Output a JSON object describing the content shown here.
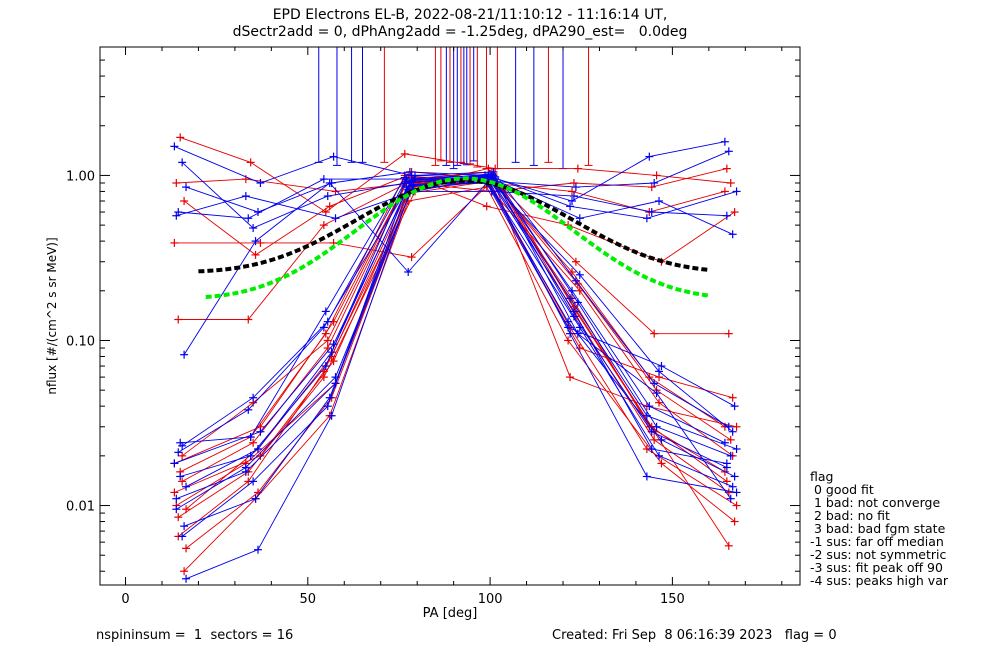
{
  "title_line1": "EPD Electrons EL-B, 2022-08-21/11:10:12 - 11:16:14 UT,",
  "title_line2": "dSectr2add = 0, dPhAng2add = -1.25deg, dPA290_est=   0.0deg",
  "footer_left": "nspininsum =  1  sectors = 16",
  "footer_right": "Created: Fri Sep  8 06:16:39 2023   flag = 0",
  "flag_legend": {
    "heading": "flag",
    "items": [
      " 0 good fit",
      " 1 bad: not converge",
      " 2 bad: no fit",
      " 3 bad: bad fgm state",
      "-1 sus: far off median",
      "-2 sus: not symmetric",
      "-3 sus: fit peak off 90",
      "-4 sus: peaks high var"
    ]
  },
  "colors": {
    "red": "#e60000",
    "blue": "#0000ee",
    "black": "#000000",
    "green": "#00ee00"
  },
  "chart_data": {
    "type": "line",
    "title": "EPD Electrons EL-B, 2022-08-21/11:10:12 - 11:16:14 UT,",
    "xlabel": "PA [deg]",
    "ylabel": "nflux [#/(cm^2 s sr MeV)]",
    "xlim": [
      -7,
      185
    ],
    "ylim": [
      0.0033,
      6.0
    ],
    "yscale": "log",
    "xticks": [
      0,
      50,
      100,
      150
    ],
    "xtick_labels": [
      "0",
      "50",
      "100",
      "150"
    ],
    "yticks": [
      0.01,
      0.1,
      1.0
    ],
    "ytick_labels": [
      "0.01",
      "0.10",
      "1.00"
    ],
    "pa": [
      15,
      35,
      56,
      78,
      100,
      123,
      145,
      166
    ],
    "pa_jitter": [
      1.6,
      2.0,
      1.6,
      1.4,
      1.4,
      1.6,
      2.0,
      1.6
    ],
    "series": [
      {
        "color": "red",
        "values": [
          0.012,
          0.02,
          0.075,
          0.85,
          0.95,
          0.18,
          0.03,
          0.016
        ]
      },
      {
        "color": "red",
        "values": [
          0.0085,
          0.016,
          0.06,
          0.8,
          1.0,
          0.14,
          0.025,
          0.012
        ]
      },
      {
        "color": "red",
        "values": [
          0.014,
          0.024,
          0.09,
          0.9,
          0.9,
          0.2,
          0.042,
          0.02
        ]
      },
      {
        "color": "red",
        "values": [
          0.0055,
          0.012,
          0.045,
          0.78,
          0.92,
          0.12,
          0.022,
          0.01
        ]
      },
      {
        "color": "red",
        "values": [
          0.01,
          0.018,
          0.055,
          0.95,
          1.05,
          0.16,
          0.03,
          0.014
        ]
      },
      {
        "color": "red",
        "values": [
          0.016,
          0.026,
          0.11,
          1.0,
          0.88,
          0.22,
          0.05,
          0.025
        ]
      },
      {
        "color": "red",
        "values": [
          0.004,
          0.011,
          0.035,
          0.7,
          0.85,
          0.1,
          0.018,
          0.008
        ]
      },
      {
        "color": "red",
        "values": [
          0.018,
          0.03,
          0.13,
          1.05,
          0.95,
          0.26,
          0.06,
          0.03
        ]
      },
      {
        "color": "red",
        "values": [
          0.0065,
          0.014,
          0.065,
          0.88,
          1.02,
          0.15,
          0.028,
          0.0057
        ]
      },
      {
        "color": "red",
        "values": [
          0.02,
          0.042,
          0.1,
          0.92,
          0.98,
          0.09,
          0.06,
          0.045
        ]
      },
      {
        "color": "red",
        "values": [
          0.0095,
          0.022,
          0.08,
          0.86,
          1.1,
          0.06,
          0.04,
          0.03
        ]
      },
      {
        "color": "red",
        "values": [
          0.9,
          0.95,
          0.8,
          0.9,
          0.8,
          0.9,
          0.85,
          1.1
        ]
      },
      {
        "color": "red",
        "values": [
          1.7,
          1.2,
          0.6,
          1.35,
          1.1,
          1.1,
          1.0,
          0.9
        ]
      },
      {
        "color": "red",
        "values": [
          0.7,
          0.33,
          0.65,
          1.0,
          0.65,
          0.5,
          0.3,
          0.6
        ]
      },
      {
        "color": "red",
        "values": [
          0.39,
          0.39,
          0.39,
          0.32,
          0.9,
          0.8,
          0.6,
          0.8
        ]
      },
      {
        "color": "red",
        "values": [
          0.134,
          0.134,
          0.5,
          0.95,
          0.95,
          0.3,
          0.11,
          0.11
        ]
      },
      {
        "color": "blue",
        "values": [
          0.023,
          0.045,
          0.13,
          0.95,
          1.0,
          0.25,
          0.065,
          0.028
        ]
      },
      {
        "color": "blue",
        "values": [
          0.0036,
          0.0054,
          0.035,
          0.8,
          0.95,
          0.11,
          0.015,
          0.012
        ]
      },
      {
        "color": "blue",
        "values": [
          0.011,
          0.016,
          0.055,
          0.88,
          0.9,
          0.15,
          0.022,
          0.018
        ]
      },
      {
        "color": "blue",
        "values": [
          0.015,
          0.02,
          0.07,
          0.9,
          0.98,
          0.17,
          0.03,
          0.02
        ]
      },
      {
        "color": "blue",
        "values": [
          0.0075,
          0.011,
          0.045,
          0.82,
          0.92,
          0.13,
          0.025,
          0.015
        ]
      },
      {
        "color": "blue",
        "values": [
          0.018,
          0.028,
          0.095,
          0.93,
          1.02,
          0.2,
          0.04,
          0.024
        ]
      },
      {
        "color": "blue",
        "values": [
          0.021,
          0.038,
          0.12,
          1.0,
          1.05,
          0.23,
          0.055,
          0.03
        ]
      },
      {
        "color": "blue",
        "values": [
          0.0065,
          0.014,
          0.04,
          0.85,
          0.96,
          0.12,
          0.02,
          0.013
        ]
      },
      {
        "color": "blue",
        "values": [
          0.013,
          0.022,
          0.085,
          0.91,
          0.99,
          0.18,
          0.035,
          0.022
        ]
      },
      {
        "color": "blue",
        "values": [
          0.0095,
          0.017,
          0.06,
          0.87,
          1.0,
          0.14,
          0.028,
          0.017
        ]
      },
      {
        "color": "blue",
        "values": [
          0.024,
          0.026,
          0.15,
          0.97,
          0.95,
          0.11,
          0.048,
          0.011
        ]
      },
      {
        "color": "blue",
        "values": [
          0.082,
          0.4,
          0.9,
          0.26,
          0.9,
          0.12,
          0.07,
          0.04
        ]
      },
      {
        "color": "blue",
        "values": [
          1.5,
          0.9,
          1.3,
          1.0,
          0.98,
          0.7,
          1.3,
          1.6
        ]
      },
      {
        "color": "blue",
        "values": [
          0.6,
          0.55,
          0.95,
          0.95,
          0.92,
          0.85,
          0.9,
          1.4
        ]
      },
      {
        "color": "blue",
        "values": [
          1.2,
          0.48,
          0.75,
          0.9,
          1.0,
          0.55,
          0.7,
          0.44
        ]
      },
      {
        "color": "blue",
        "values": [
          0.85,
          0.6,
          0.9,
          1.05,
          1.0,
          0.65,
          0.55,
          0.8
        ]
      },
      {
        "color": "blue",
        "values": [
          0.57,
          0.75,
          0.55,
          0.8,
          0.8,
          0.75,
          0.6,
          0.57
        ]
      }
    ],
    "fit_curves": [
      {
        "color": "black",
        "x_range": [
          20,
          160
        ],
        "baseline": 0.26,
        "peak": 0.93,
        "peak_pa": 93
      },
      {
        "color": "green",
        "x_range": [
          22,
          160
        ],
        "baseline": 0.18,
        "peak": 0.96,
        "peak_pa": 93
      }
    ],
    "spikes": [
      {
        "color": "blue",
        "pa": 53
      },
      {
        "color": "blue",
        "pa": 58
      },
      {
        "color": "blue",
        "pa": 62
      },
      {
        "color": "blue",
        "pa": 65
      },
      {
        "color": "red",
        "pa": 71
      },
      {
        "color": "red",
        "pa": 85
      },
      {
        "color": "red",
        "pa": 86.5
      },
      {
        "color": "blue",
        "pa": 88
      },
      {
        "color": "red",
        "pa": 89
      },
      {
        "color": "blue",
        "pa": 90
      },
      {
        "color": "blue",
        "pa": 91
      },
      {
        "color": "red",
        "pa": 92
      },
      {
        "color": "blue",
        "pa": 92.8
      },
      {
        "color": "blue",
        "pa": 93.6
      },
      {
        "color": "red",
        "pa": 94.5
      },
      {
        "color": "blue",
        "pa": 95.5
      },
      {
        "color": "red",
        "pa": 96.5
      },
      {
        "color": "red",
        "pa": 99
      },
      {
        "color": "red",
        "pa": 102
      },
      {
        "color": "blue",
        "pa": 107
      },
      {
        "color": "blue",
        "pa": 112
      },
      {
        "color": "red",
        "pa": 116
      },
      {
        "color": "blue",
        "pa": 120
      },
      {
        "color": "red",
        "pa": 127
      }
    ]
  }
}
